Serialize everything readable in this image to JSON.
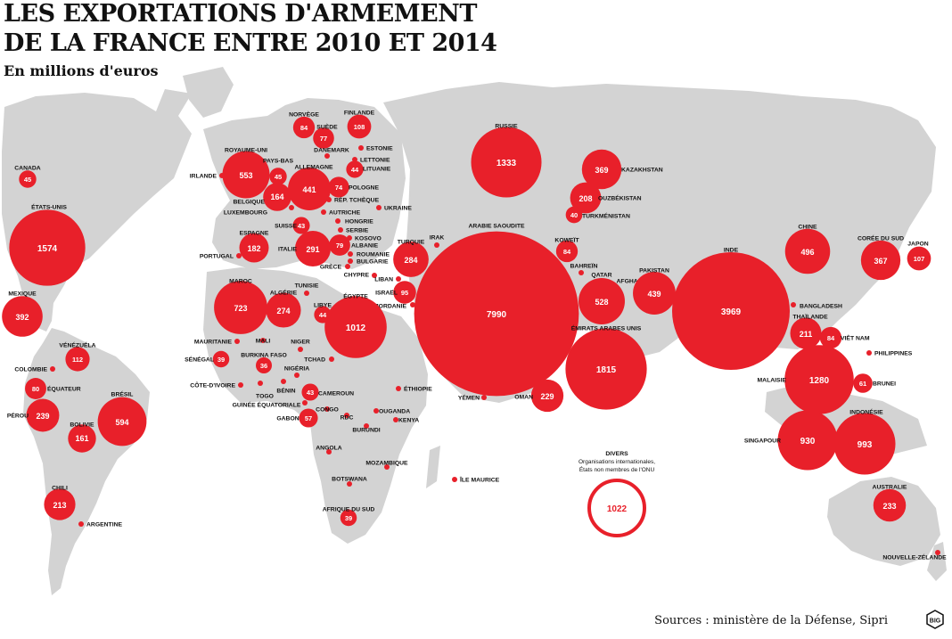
{
  "title_line1": "LES EXPORTATIONS D'ARMEMENT",
  "title_line2": "DE LA FRANCE ENTRE 2010 ET 2014",
  "subtitle": "En millions d'euros",
  "sources": "Sources : ministère de la Défense, Sipri",
  "logo_text": "BIG",
  "colors": {
    "marker": "#e8202a",
    "land": "#d3d3d3",
    "text": "#111111",
    "value_text": "#ffffff"
  },
  "countries": [
    {
      "name": "CANADA",
      "value": "45"
    },
    {
      "name": "ÉTATS-UNIS",
      "value": "1574"
    },
    {
      "name": "MEXIQUE",
      "value": "392"
    },
    {
      "name": "VÉNÉZUÉLA",
      "value": "112"
    },
    {
      "name": "COLOMBIE",
      "value": ""
    },
    {
      "name": "ÉQUATEUR",
      "value": "80"
    },
    {
      "name": "PÉROU",
      "value": "239"
    },
    {
      "name": "BOLIVIE",
      "value": "161"
    },
    {
      "name": "BRÉSIL",
      "value": "594"
    },
    {
      "name": "CHILI",
      "value": "213"
    },
    {
      "name": "ARGENTINE",
      "value": ""
    },
    {
      "name": "ROYAUME-UNI",
      "value": "553"
    },
    {
      "name": "IRLANDE",
      "value": ""
    },
    {
      "name": "PAYS-BAS",
      "value": "45"
    },
    {
      "name": "BELGIQUE",
      "value": "164"
    },
    {
      "name": "LUXEMBOURG",
      "value": ""
    },
    {
      "name": "NORVÈGE",
      "value": "84"
    },
    {
      "name": "SUÈDE",
      "value": "77"
    },
    {
      "name": "FINLANDE",
      "value": "108"
    },
    {
      "name": "DANEMARK",
      "value": ""
    },
    {
      "name": "ALLEMAGNE",
      "value": "441"
    },
    {
      "name": "POLOGNE",
      "value": "74"
    },
    {
      "name": "ESTONIE",
      "value": ""
    },
    {
      "name": "LETTONIE",
      "value": ""
    },
    {
      "name": "LITUANIE",
      "value": "44"
    },
    {
      "name": "RÉP. TCHÈQUE",
      "value": ""
    },
    {
      "name": "AUTRICHE",
      "value": ""
    },
    {
      "name": "UKRAINE",
      "value": ""
    },
    {
      "name": "SUISSE",
      "value": "43"
    },
    {
      "name": "HONGRIE",
      "value": ""
    },
    {
      "name": "SERBIE",
      "value": ""
    },
    {
      "name": "KOSOVO",
      "value": ""
    },
    {
      "name": "ALBANIE",
      "value": "79"
    },
    {
      "name": "ROUMANIE",
      "value": ""
    },
    {
      "name": "BULGARIE",
      "value": ""
    },
    {
      "name": "ESPAGNE",
      "value": "182"
    },
    {
      "name": "PORTUGAL",
      "value": ""
    },
    {
      "name": "ITALIE",
      "value": "291"
    },
    {
      "name": "GRÈCE",
      "value": ""
    },
    {
      "name": "CHYPRE",
      "value": ""
    },
    {
      "name": "TURQUIE",
      "value": "284"
    },
    {
      "name": "IRAK",
      "value": ""
    },
    {
      "name": "LIBAN",
      "value": ""
    },
    {
      "name": "ISRAËL",
      "value": "95"
    },
    {
      "name": "JORDANIE",
      "value": ""
    },
    {
      "name": "MAROC",
      "value": "723"
    },
    {
      "name": "ALGÉRIE",
      "value": "274"
    },
    {
      "name": "TUNISIE",
      "value": ""
    },
    {
      "name": "LIBYE",
      "value": "44"
    },
    {
      "name": "ÉGYPTE",
      "value": "1012"
    },
    {
      "name": "MAURITANIE",
      "value": ""
    },
    {
      "name": "MALI",
      "value": ""
    },
    {
      "name": "NIGER",
      "value": ""
    },
    {
      "name": "SÉNÉGAL",
      "value": "39"
    },
    {
      "name": "BURKINA FASO",
      "value": "36"
    },
    {
      "name": "TCHAD",
      "value": ""
    },
    {
      "name": "NIGÉRIA",
      "value": ""
    },
    {
      "name": "CÔTE-D'IVOIRE",
      "value": ""
    },
    {
      "name": "TOGO",
      "value": ""
    },
    {
      "name": "BÉNIN",
      "value": ""
    },
    {
      "name": "CAMEROUN",
      "value": "43"
    },
    {
      "name": "GUINÉE ÉQUATORIALE",
      "value": ""
    },
    {
      "name": "GABON",
      "value": "57"
    },
    {
      "name": "CONGO",
      "value": ""
    },
    {
      "name": "RDC",
      "value": ""
    },
    {
      "name": "BURUNDI",
      "value": ""
    },
    {
      "name": "OUGANDA",
      "value": ""
    },
    {
      "name": "KENYA",
      "value": ""
    },
    {
      "name": "ÉTHIOPIE",
      "value": ""
    },
    {
      "name": "ANGOLA",
      "value": ""
    },
    {
      "name": "MOZAMBIQUE",
      "value": ""
    },
    {
      "name": "BOTSWANA",
      "value": ""
    },
    {
      "name": "AFRIQUE DU SUD",
      "value": "39"
    },
    {
      "name": "ÎLE MAURICE",
      "value": ""
    },
    {
      "name": "RUSSIE",
      "value": "1333"
    },
    {
      "name": "KAZAKHSTAN",
      "value": "369"
    },
    {
      "name": "OUZBÉKISTAN",
      "value": "208"
    },
    {
      "name": "TURKMÉNISTAN",
      "value": "40"
    },
    {
      "name": "ARABIE SAOUDITE",
      "value": "7990"
    },
    {
      "name": "KOWEÏT",
      "value": "84"
    },
    {
      "name": "BAHREÏN",
      "value": ""
    },
    {
      "name": "QATAR",
      "value": "528"
    },
    {
      "name": "ÉMIRATS ARABES UNIS",
      "value": "1815"
    },
    {
      "name": "YÉMEN",
      "value": ""
    },
    {
      "name": "OMAN",
      "value": "229"
    },
    {
      "name": "AFGHANISTAN",
      "value": ""
    },
    {
      "name": "PAKISTAN",
      "value": "439"
    },
    {
      "name": "INDE",
      "value": "3969"
    },
    {
      "name": "BANGLADESH",
      "value": ""
    },
    {
      "name": "THAÏLANDE",
      "value": "211"
    },
    {
      "name": "VIÊT NAM",
      "value": "84"
    },
    {
      "name": "CHINE",
      "value": "496"
    },
    {
      "name": "CORÉE DU SUD",
      "value": "367"
    },
    {
      "name": "JAPON",
      "value": "107"
    },
    {
      "name": "PHILIPPINES",
      "value": ""
    },
    {
      "name": "MALAISIE",
      "value": "1280"
    },
    {
      "name": "BRUNEI",
      "value": "61"
    },
    {
      "name": "SINGAPOUR",
      "value": "930"
    },
    {
      "name": "INDONÉSIE",
      "value": "993"
    },
    {
      "name": "AUSTRALIE",
      "value": "233"
    },
    {
      "name": "NOUVELLE-ZÉLANDE",
      "value": ""
    }
  ],
  "divers": {
    "label": "DIVERS",
    "note_line1": "Organisations internationales,",
    "note_line2": "États non membres de l'ONU",
    "value": "1022"
  }
}
